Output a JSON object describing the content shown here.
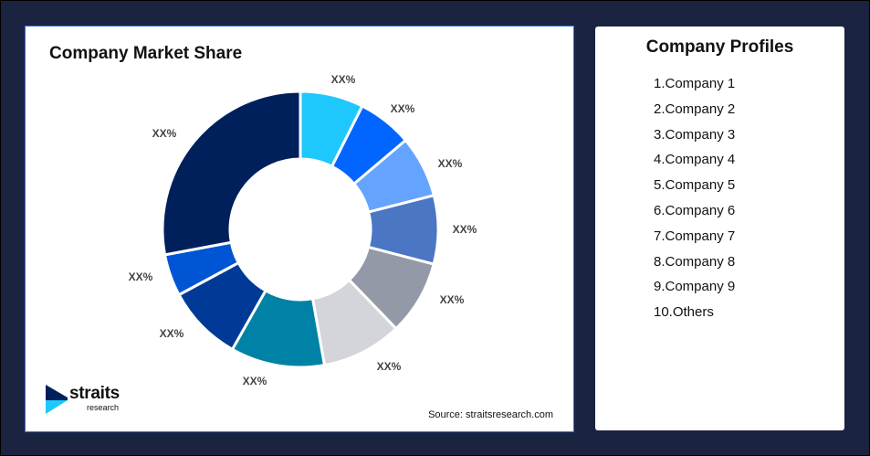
{
  "chart_data": {
    "type": "pie",
    "variant": "donut",
    "title": "Company Market Share",
    "categories": [
      "Company 1",
      "Company 2",
      "Company 3",
      "Company 4",
      "Company 5",
      "Company 6",
      "Company 7",
      "Company 8",
      "Company 9",
      "Others"
    ],
    "values": [
      7.4,
      6.4,
      7.2,
      8.0,
      8.7,
      9.4,
      11.0,
      8.9,
      4.9,
      27.9
    ],
    "data_labels": [
      "XX%",
      "XX%",
      "XX%",
      "XX%",
      "XX%",
      "XX%",
      "XX%",
      "XX%",
      "XX%",
      "XX%"
    ],
    "colors": [
      "#1ec8fc",
      "#0066ff",
      "#64a4ff",
      "#4a76c4",
      "#9399a6",
      "#d4d5da",
      "#0082a6",
      "#003a96",
      "#0055d4",
      "#00205b"
    ],
    "legend": "none"
  },
  "source": "Source: straitsresearch.com",
  "logo": {
    "line1": "straits",
    "line2": "research"
  },
  "profiles": {
    "title": "Company Profiles",
    "items": [
      "1.Company 1",
      "2.Company 2",
      "3.Company 3",
      "4.Company 4",
      "5.Company 5",
      "6.Company 6",
      "7.Company 7",
      "8.Company 8",
      "9.Company 9",
      "10.Others"
    ]
  }
}
